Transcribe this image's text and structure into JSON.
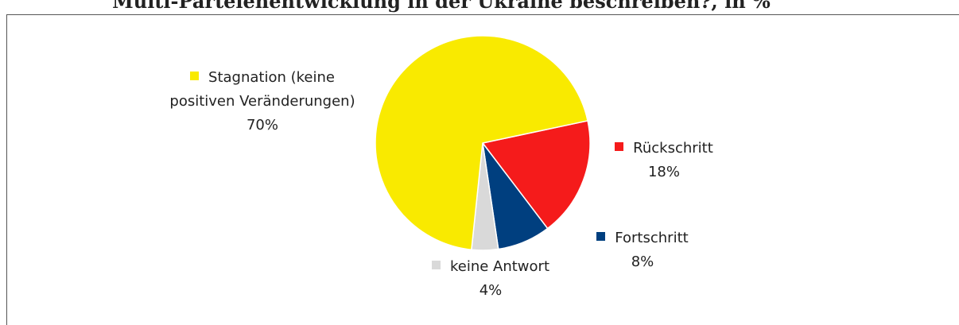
{
  "chart_data": {
    "type": "pie",
    "title": "Multi-Parteienentwicklung in der Ukraine beschreiben?, in %",
    "categories": [
      "Rückschritt",
      "Fortschritt",
      "keine Antwort",
      "Stagnation (keine positiven Veränderungen)"
    ],
    "values": [
      18,
      8,
      4,
      70
    ],
    "value_labels": [
      "18%",
      "8%",
      "4%",
      "70%"
    ],
    "colors": [
      "#f51b1b",
      "#003f7f",
      "#d9d9d9",
      "#f9ea00"
    ]
  }
}
